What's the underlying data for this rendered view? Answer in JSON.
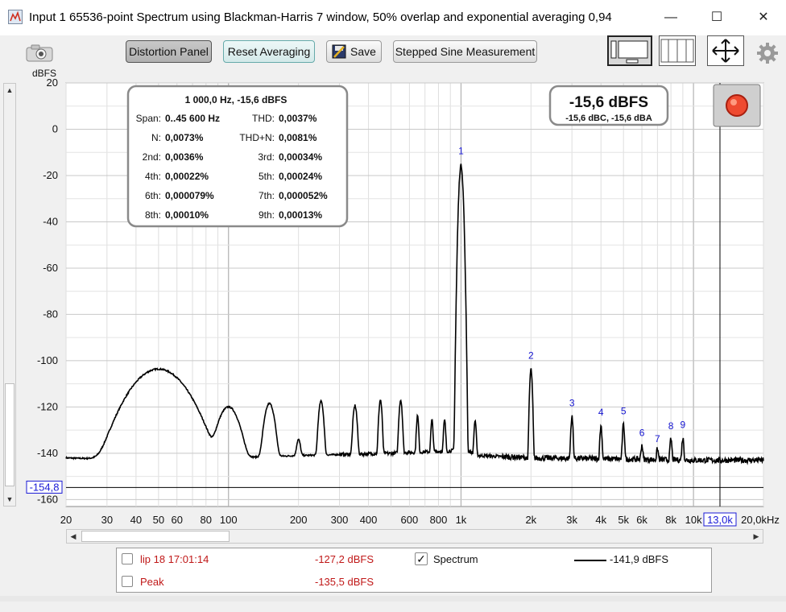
{
  "window": {
    "title": "Input 1 65536-point Spectrum using Blackman-Harris 7 window, 50% overlap and exponential averaging 0,94",
    "minimize_glyph": "—",
    "maximize_glyph": "☐",
    "close_glyph": "✕"
  },
  "toolbar": {
    "camera_icon": "camera-icon",
    "distortion_panel": "Distortion Panel",
    "reset_averaging": "Reset Averaging",
    "save": "Save",
    "stepped_sine": "Stepped Sine Measurement",
    "gear_icon": "gear-icon"
  },
  "distortion": {
    "header": "1 000,0 Hz, -15,6 dBFS",
    "rows": [
      {
        "l_label": "Span:",
        "l_value": "0..45 600 Hz",
        "r_label": "THD:",
        "r_value": "0,0037%"
      },
      {
        "l_label": "N:",
        "l_value": "0,0073%",
        "r_label": "THD+N:",
        "r_value": "0,0081%"
      },
      {
        "l_label": "2nd:",
        "l_value": "0,0036%",
        "r_label": "3rd:",
        "r_value": "0,00034%"
      },
      {
        "l_label": "4th:",
        "l_value": "0,00022%",
        "r_label": "5th:",
        "r_value": "0,00024%"
      },
      {
        "l_label": "6th:",
        "l_value": "0,000079%",
        "r_label": "7th:",
        "r_value": "0,000052%"
      },
      {
        "l_label": "8th:",
        "l_value": "0,00010%",
        "r_label": "9th:",
        "r_value": "0,00013%"
      }
    ]
  },
  "level": {
    "main": "-15,6 dBFS",
    "sub": "-15,6 dBC, -15,6 dBA"
  },
  "cursor": {
    "y_readout": "-154,8",
    "x_readout": "13,0k"
  },
  "chart_data": {
    "type": "line",
    "ylabel": "dBFS",
    "xlabel": "",
    "x_scale": "log",
    "xlim": [
      20,
      20000
    ],
    "ylim": [
      -163,
      20
    ],
    "grid": true,
    "x_tick_labels": [
      {
        "v": 20,
        "t": "20"
      },
      {
        "v": 30,
        "t": "30"
      },
      {
        "v": 40,
        "t": "40"
      },
      {
        "v": 50,
        "t": "50"
      },
      {
        "v": 60,
        "t": "60"
      },
      {
        "v": 80,
        "t": "80"
      },
      {
        "v": 100,
        "t": "100"
      },
      {
        "v": 200,
        "t": "200"
      },
      {
        "v": 300,
        "t": "300"
      },
      {
        "v": 400,
        "t": "400"
      },
      {
        "v": 600,
        "t": "600"
      },
      {
        "v": 800,
        "t": "800"
      },
      {
        "v": 1000,
        "t": "1k"
      },
      {
        "v": 2000,
        "t": "2k"
      },
      {
        "v": 3000,
        "t": "3k"
      },
      {
        "v": 4000,
        "t": "4k"
      },
      {
        "v": 5000,
        "t": "5k"
      },
      {
        "v": 6000,
        "t": "6k"
      },
      {
        "v": 8000,
        "t": "8k"
      },
      {
        "v": 10000,
        "t": "10k"
      },
      {
        "v": 20000,
        "t": "20,0kHz"
      }
    ],
    "y_ticks": [
      20,
      0,
      -20,
      -40,
      -60,
      -80,
      -100,
      -120,
      -140,
      -160
    ],
    "noise_floor": [
      [
        20,
        -142
      ],
      [
        30,
        -142.5
      ],
      [
        40,
        -142
      ],
      [
        70,
        -143
      ],
      [
        100,
        -142
      ],
      [
        200,
        -141
      ],
      [
        500,
        -140
      ],
      [
        900,
        -139
      ],
      [
        1000,
        -138
      ],
      [
        1200,
        -141
      ],
      [
        2000,
        -142
      ],
      [
        5000,
        -142.5
      ],
      [
        10000,
        -143
      ],
      [
        20000,
        -143
      ]
    ],
    "peaks": [
      {
        "f": 50,
        "db": -103.6,
        "w": 0.06
      },
      {
        "f": 100,
        "db": -120,
        "w": 0.025
      },
      {
        "f": 150,
        "db": -118.5,
        "w": 0.012
      },
      {
        "f": 200,
        "db": -135,
        "w": 0.006
      },
      {
        "f": 250,
        "db": -117.5,
        "w": 0.006
      },
      {
        "f": 350,
        "db": -119.5,
        "w": 0.005
      },
      {
        "f": 450,
        "db": -117,
        "w": 0.004
      },
      {
        "f": 550,
        "db": -117,
        "w": 0.004
      },
      {
        "f": 650,
        "db": -124,
        "w": 0.003
      },
      {
        "f": 750,
        "db": -126,
        "w": 0.003
      },
      {
        "f": 850,
        "db": -126,
        "w": 0.003
      },
      {
        "f": 950,
        "db": -125,
        "w": 0.003
      },
      {
        "f": 1000,
        "db": -15.6,
        "w": 0.004
      },
      {
        "f": 1150,
        "db": -126,
        "w": 0.003
      },
      {
        "f": 2000,
        "db": -104,
        "w": 0.003
      },
      {
        "f": 3000,
        "db": -124.5,
        "w": 0.003
      },
      {
        "f": 4000,
        "db": -128.5,
        "w": 0.003
      },
      {
        "f": 5000,
        "db": -128,
        "w": 0.003
      },
      {
        "f": 6000,
        "db": -137.5,
        "w": 0.003
      },
      {
        "f": 7000,
        "db": -140,
        "w": 0.003
      },
      {
        "f": 8000,
        "db": -134.5,
        "w": 0.003
      },
      {
        "f": 9000,
        "db": -134,
        "w": 0.003
      }
    ],
    "harmonic_labels": [
      {
        "f": 1000,
        "db": -15.6,
        "t": "1"
      },
      {
        "f": 2000,
        "db": -104,
        "t": "2"
      },
      {
        "f": 3000,
        "db": -124.5,
        "t": "3"
      },
      {
        "f": 4000,
        "db": -128.5,
        "t": "4"
      },
      {
        "f": 5000,
        "db": -128,
        "t": "5"
      },
      {
        "f": 6000,
        "db": -137.5,
        "t": "6"
      },
      {
        "f": 7000,
        "db": -140,
        "t": "7"
      },
      {
        "f": 8000,
        "db": -134.5,
        "t": "8"
      },
      {
        "f": 9000,
        "db": -134,
        "t": "9"
      }
    ],
    "cursor_y": -154.8,
    "cursor_x": 13000,
    "line_color": "#000000",
    "harmonic_label_color": "#1414d0",
    "cursor_readout_color": "#1a1ad6"
  },
  "legend": {
    "rows": [
      {
        "name": "lip 18 17:01:14",
        "value": "-127,2 dBFS",
        "checked": false
      },
      {
        "name": "Peak",
        "value": "-135,5 dBFS",
        "checked": false
      }
    ],
    "spectrum_label": "Spectrum",
    "spectrum_checked": true,
    "spectrum_value": "-141,9 dBFS",
    "check_glyph": "✓"
  },
  "scroll": {
    "up": "▲",
    "down": "▼",
    "left": "◀",
    "right": "▶"
  }
}
